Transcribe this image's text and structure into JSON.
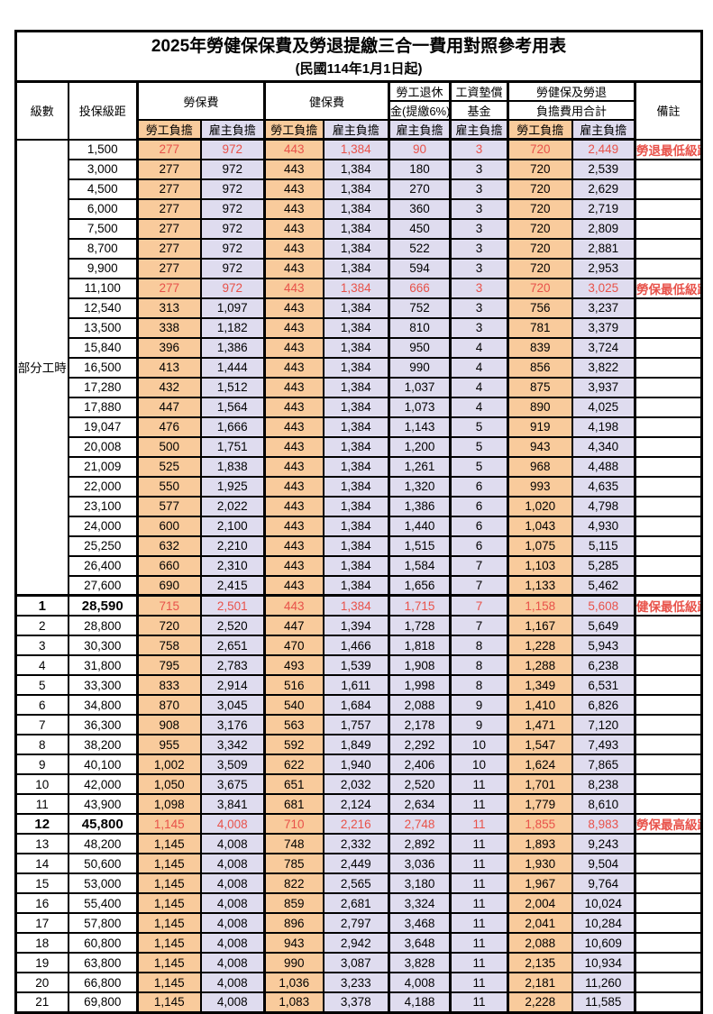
{
  "title": {
    "main": "2025年勞健保保費及勞退提繳三合一費用對照參考用表",
    "subtitle": "(民國114年1月1日起)"
  },
  "colors": {
    "employee_bg": "#F9CB9C",
    "employer_bg": "#DFDCEF",
    "highlight_red": "#E8524A",
    "border_black": "#000000"
  },
  "header": {
    "level": "級數",
    "bracket": "投保級距",
    "labor_ins": "勞保費",
    "health_ins": "健保費",
    "pension_l1": "勞工退休",
    "pension_l2": "金(提繳6%)",
    "wage_fund_l1": "工資墊償",
    "wage_fund_l2": "基金",
    "total_l1": "勞健保及勞退",
    "total_l2": "負擔費用合計",
    "remark": "備註",
    "employee": "勞工負擔",
    "employer": "雇主負擔"
  },
  "part_time": {
    "label": "部分工時",
    "row_count": 23
  },
  "rows": [
    {
      "level": "",
      "bracket": "1,500",
      "vals": [
        "277",
        "972",
        "443",
        "1,384",
        "90",
        "3",
        "720",
        "2,449"
      ],
      "remark": "勞退最低級距",
      "hl": true,
      "bold": false
    },
    {
      "level": "",
      "bracket": "3,000",
      "vals": [
        "277",
        "972",
        "443",
        "1,384",
        "180",
        "3",
        "720",
        "2,539"
      ],
      "remark": "",
      "hl": false,
      "bold": false
    },
    {
      "level": "",
      "bracket": "4,500",
      "vals": [
        "277",
        "972",
        "443",
        "1,384",
        "270",
        "3",
        "720",
        "2,629"
      ],
      "remark": "",
      "hl": false,
      "bold": false
    },
    {
      "level": "",
      "bracket": "6,000",
      "vals": [
        "277",
        "972",
        "443",
        "1,384",
        "360",
        "3",
        "720",
        "2,719"
      ],
      "remark": "",
      "hl": false,
      "bold": false
    },
    {
      "level": "",
      "bracket": "7,500",
      "vals": [
        "277",
        "972",
        "443",
        "1,384",
        "450",
        "3",
        "720",
        "2,809"
      ],
      "remark": "",
      "hl": false,
      "bold": false
    },
    {
      "level": "",
      "bracket": "8,700",
      "vals": [
        "277",
        "972",
        "443",
        "1,384",
        "522",
        "3",
        "720",
        "2,881"
      ],
      "remark": "",
      "hl": false,
      "bold": false
    },
    {
      "level": "",
      "bracket": "9,900",
      "vals": [
        "277",
        "972",
        "443",
        "1,384",
        "594",
        "3",
        "720",
        "2,953"
      ],
      "remark": "",
      "hl": false,
      "bold": false
    },
    {
      "level": "",
      "bracket": "11,100",
      "vals": [
        "277",
        "972",
        "443",
        "1,384",
        "666",
        "3",
        "720",
        "3,025"
      ],
      "remark": "勞保最低級距",
      "hl": true,
      "bold": false
    },
    {
      "level": "",
      "bracket": "12,540",
      "vals": [
        "313",
        "1,097",
        "443",
        "1,384",
        "752",
        "3",
        "756",
        "3,237"
      ],
      "remark": "",
      "hl": false,
      "bold": false
    },
    {
      "level": "",
      "bracket": "13,500",
      "vals": [
        "338",
        "1,182",
        "443",
        "1,384",
        "810",
        "3",
        "781",
        "3,379"
      ],
      "remark": "",
      "hl": false,
      "bold": false
    },
    {
      "level": "",
      "bracket": "15,840",
      "vals": [
        "396",
        "1,386",
        "443",
        "1,384",
        "950",
        "4",
        "839",
        "3,724"
      ],
      "remark": "",
      "hl": false,
      "bold": false
    },
    {
      "level": "",
      "bracket": "16,500",
      "vals": [
        "413",
        "1,444",
        "443",
        "1,384",
        "990",
        "4",
        "856",
        "3,822"
      ],
      "remark": "",
      "hl": false,
      "bold": false
    },
    {
      "level": "",
      "bracket": "17,280",
      "vals": [
        "432",
        "1,512",
        "443",
        "1,384",
        "1,037",
        "4",
        "875",
        "3,937"
      ],
      "remark": "",
      "hl": false,
      "bold": false
    },
    {
      "level": "",
      "bracket": "17,880",
      "vals": [
        "447",
        "1,564",
        "443",
        "1,384",
        "1,073",
        "4",
        "890",
        "4,025"
      ],
      "remark": "",
      "hl": false,
      "bold": false
    },
    {
      "level": "",
      "bracket": "19,047",
      "vals": [
        "476",
        "1,666",
        "443",
        "1,384",
        "1,143",
        "5",
        "919",
        "4,198"
      ],
      "remark": "",
      "hl": false,
      "bold": false
    },
    {
      "level": "",
      "bracket": "20,008",
      "vals": [
        "500",
        "1,751",
        "443",
        "1,384",
        "1,200",
        "5",
        "943",
        "4,340"
      ],
      "remark": "",
      "hl": false,
      "bold": false
    },
    {
      "level": "",
      "bracket": "21,009",
      "vals": [
        "525",
        "1,838",
        "443",
        "1,384",
        "1,261",
        "5",
        "968",
        "4,488"
      ],
      "remark": "",
      "hl": false,
      "bold": false
    },
    {
      "level": "",
      "bracket": "22,000",
      "vals": [
        "550",
        "1,925",
        "443",
        "1,384",
        "1,320",
        "6",
        "993",
        "4,635"
      ],
      "remark": "",
      "hl": false,
      "bold": false
    },
    {
      "level": "",
      "bracket": "23,100",
      "vals": [
        "577",
        "2,022",
        "443",
        "1,384",
        "1,386",
        "6",
        "1,020",
        "4,798"
      ],
      "remark": "",
      "hl": false,
      "bold": false
    },
    {
      "level": "",
      "bracket": "24,000",
      "vals": [
        "600",
        "2,100",
        "443",
        "1,384",
        "1,440",
        "6",
        "1,043",
        "4,930"
      ],
      "remark": "",
      "hl": false,
      "bold": false
    },
    {
      "level": "",
      "bracket": "25,250",
      "vals": [
        "632",
        "2,210",
        "443",
        "1,384",
        "1,515",
        "6",
        "1,075",
        "5,115"
      ],
      "remark": "",
      "hl": false,
      "bold": false
    },
    {
      "level": "",
      "bracket": "26,400",
      "vals": [
        "660",
        "2,310",
        "443",
        "1,384",
        "1,584",
        "7",
        "1,103",
        "5,285"
      ],
      "remark": "",
      "hl": false,
      "bold": false
    },
    {
      "level": "",
      "bracket": "27,600",
      "vals": [
        "690",
        "2,415",
        "443",
        "1,384",
        "1,656",
        "7",
        "1,133",
        "5,462"
      ],
      "remark": "",
      "hl": false,
      "bold": false
    },
    {
      "level": "1",
      "bracket": "28,590",
      "vals": [
        "715",
        "2,501",
        "443",
        "1,384",
        "1,715",
        "7",
        "1,158",
        "5,608"
      ],
      "remark": "健保最低級距",
      "hl": true,
      "bold": true
    },
    {
      "level": "2",
      "bracket": "28,800",
      "vals": [
        "720",
        "2,520",
        "447",
        "1,394",
        "1,728",
        "7",
        "1,167",
        "5,649"
      ],
      "remark": "",
      "hl": false,
      "bold": false
    },
    {
      "level": "3",
      "bracket": "30,300",
      "vals": [
        "758",
        "2,651",
        "470",
        "1,466",
        "1,818",
        "8",
        "1,228",
        "5,943"
      ],
      "remark": "",
      "hl": false,
      "bold": false
    },
    {
      "level": "4",
      "bracket": "31,800",
      "vals": [
        "795",
        "2,783",
        "493",
        "1,539",
        "1,908",
        "8",
        "1,288",
        "6,238"
      ],
      "remark": "",
      "hl": false,
      "bold": false
    },
    {
      "level": "5",
      "bracket": "33,300",
      "vals": [
        "833",
        "2,914",
        "516",
        "1,611",
        "1,998",
        "8",
        "1,349",
        "6,531"
      ],
      "remark": "",
      "hl": false,
      "bold": false
    },
    {
      "level": "6",
      "bracket": "34,800",
      "vals": [
        "870",
        "3,045",
        "540",
        "1,684",
        "2,088",
        "9",
        "1,410",
        "6,826"
      ],
      "remark": "",
      "hl": false,
      "bold": false
    },
    {
      "level": "7",
      "bracket": "36,300",
      "vals": [
        "908",
        "3,176",
        "563",
        "1,757",
        "2,178",
        "9",
        "1,471",
        "7,120"
      ],
      "remark": "",
      "hl": false,
      "bold": false
    },
    {
      "level": "8",
      "bracket": "38,200",
      "vals": [
        "955",
        "3,342",
        "592",
        "1,849",
        "2,292",
        "10",
        "1,547",
        "7,493"
      ],
      "remark": "",
      "hl": false,
      "bold": false
    },
    {
      "level": "9",
      "bracket": "40,100",
      "vals": [
        "1,002",
        "3,509",
        "622",
        "1,940",
        "2,406",
        "10",
        "1,624",
        "7,865"
      ],
      "remark": "",
      "hl": false,
      "bold": false
    },
    {
      "level": "10",
      "bracket": "42,000",
      "vals": [
        "1,050",
        "3,675",
        "651",
        "2,032",
        "2,520",
        "11",
        "1,701",
        "8,238"
      ],
      "remark": "",
      "hl": false,
      "bold": false
    },
    {
      "level": "11",
      "bracket": "43,900",
      "vals": [
        "1,098",
        "3,841",
        "681",
        "2,124",
        "2,634",
        "11",
        "1,779",
        "8,610"
      ],
      "remark": "",
      "hl": false,
      "bold": false
    },
    {
      "level": "12",
      "bracket": "45,800",
      "vals": [
        "1,145",
        "4,008",
        "710",
        "2,216",
        "2,748",
        "11",
        "1,855",
        "8,983"
      ],
      "remark": "勞保最高級距",
      "hl": true,
      "bold": true
    },
    {
      "level": "13",
      "bracket": "48,200",
      "vals": [
        "1,145",
        "4,008",
        "748",
        "2,332",
        "2,892",
        "11",
        "1,893",
        "9,243"
      ],
      "remark": "",
      "hl": false,
      "bold": false
    },
    {
      "level": "14",
      "bracket": "50,600",
      "vals": [
        "1,145",
        "4,008",
        "785",
        "2,449",
        "3,036",
        "11",
        "1,930",
        "9,504"
      ],
      "remark": "",
      "hl": false,
      "bold": false
    },
    {
      "level": "15",
      "bracket": "53,000",
      "vals": [
        "1,145",
        "4,008",
        "822",
        "2,565",
        "3,180",
        "11",
        "1,967",
        "9,764"
      ],
      "remark": "",
      "hl": false,
      "bold": false
    },
    {
      "level": "16",
      "bracket": "55,400",
      "vals": [
        "1,145",
        "4,008",
        "859",
        "2,681",
        "3,324",
        "11",
        "2,004",
        "10,024"
      ],
      "remark": "",
      "hl": false,
      "bold": false
    },
    {
      "level": "17",
      "bracket": "57,800",
      "vals": [
        "1,145",
        "4,008",
        "896",
        "2,797",
        "3,468",
        "11",
        "2,041",
        "10,284"
      ],
      "remark": "",
      "hl": false,
      "bold": false
    },
    {
      "level": "18",
      "bracket": "60,800",
      "vals": [
        "1,145",
        "4,008",
        "943",
        "2,942",
        "3,648",
        "11",
        "2,088",
        "10,609"
      ],
      "remark": "",
      "hl": false,
      "bold": false
    },
    {
      "level": "19",
      "bracket": "63,800",
      "vals": [
        "1,145",
        "4,008",
        "990",
        "3,087",
        "3,828",
        "11",
        "2,135",
        "10,934"
      ],
      "remark": "",
      "hl": false,
      "bold": false
    },
    {
      "level": "20",
      "bracket": "66,800",
      "vals": [
        "1,145",
        "4,008",
        "1,036",
        "3,233",
        "4,008",
        "11",
        "2,181",
        "11,260"
      ],
      "remark": "",
      "hl": false,
      "bold": false
    },
    {
      "level": "21",
      "bracket": "69,800",
      "vals": [
        "1,145",
        "4,008",
        "1,083",
        "3,378",
        "4,188",
        "11",
        "2,228",
        "11,585"
      ],
      "remark": "",
      "hl": false,
      "bold": false
    }
  ]
}
